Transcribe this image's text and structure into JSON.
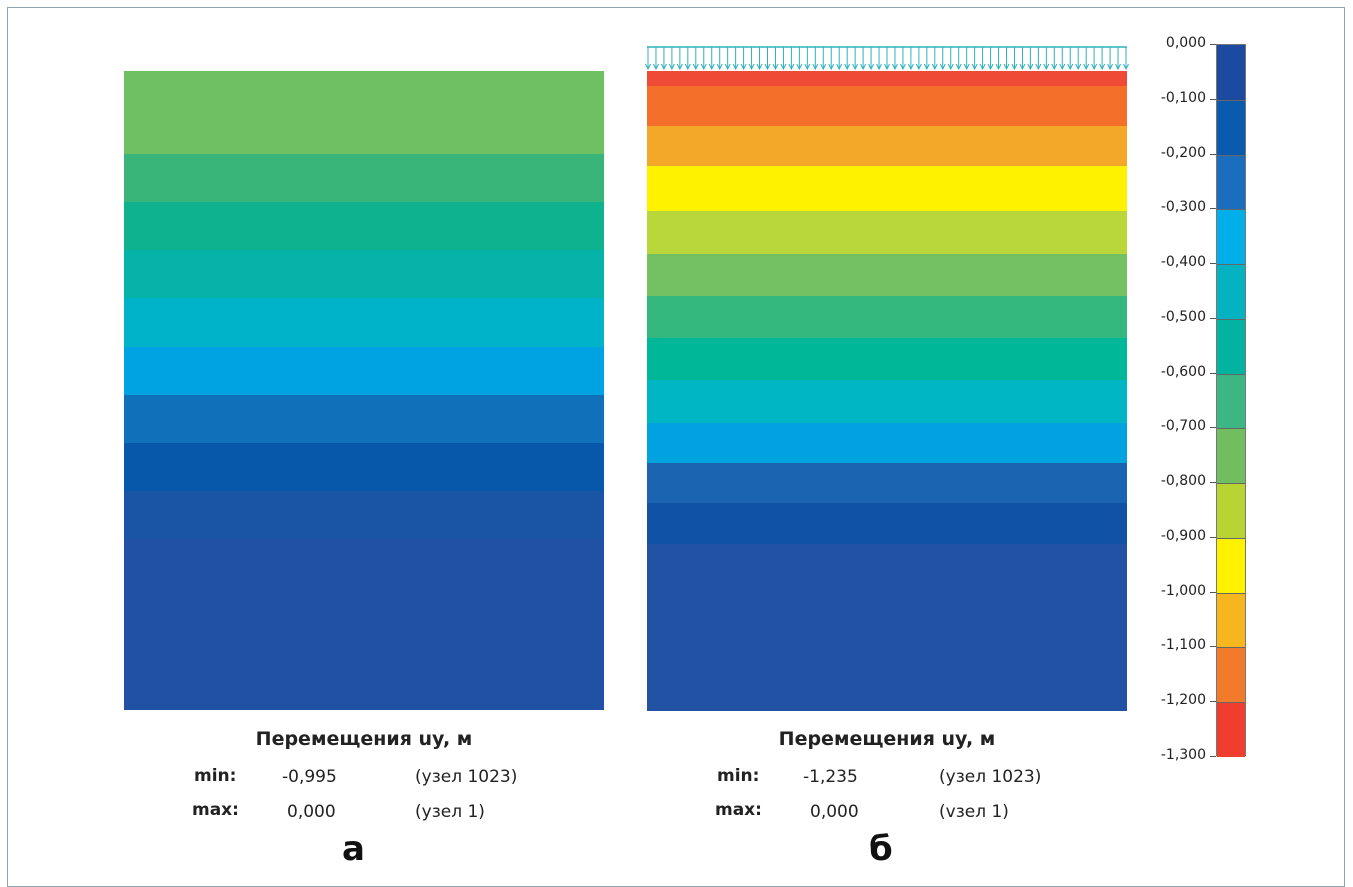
{
  "chart_data": [
    {
      "type": "heatmap",
      "panel_label": "а",
      "title": "Перемещения uy, м",
      "stats": {
        "min": {
          "label": "min:",
          "value": "-0,995",
          "node": "(узел 1023)"
        },
        "max": {
          "label": "max:",
          "value": "0,000",
          "node": "(узел 1)"
        }
      },
      "bands": [
        {
          "color": "#6fbf63"
        },
        {
          "color": "#39b57a"
        },
        {
          "color": "#0fb28e"
        },
        {
          "color": "#06b3a9"
        },
        {
          "color": "#01b3c9"
        },
        {
          "color": "#00a3e2"
        },
        {
          "color": "#1070b9"
        },
        {
          "color": "#0758aa"
        },
        {
          "color": "#1a55a5"
        },
        {
          "color": "#2151a4"
        }
      ]
    },
    {
      "type": "heatmap",
      "panel_label": "б",
      "title": "Перемещения uy, м",
      "stats": {
        "min": {
          "label": "min:",
          "value": "-1,235",
          "node": "(узел 1023)"
        },
        "max": {
          "label": "max:",
          "value": "0,000",
          "node": "(vзел 1)"
        }
      },
      "bands": [
        {
          "color": "#ef4a35"
        },
        {
          "color": "#f36f2a"
        },
        {
          "color": "#f4a828"
        },
        {
          "color": "#fff200"
        },
        {
          "color": "#b9d63a"
        },
        {
          "color": "#74c163"
        },
        {
          "color": "#34b87e"
        },
        {
          "color": "#00b797"
        },
        {
          "color": "#00b6c4"
        },
        {
          "color": "#00a2e0"
        },
        {
          "color": "#1a64b2"
        },
        {
          "color": "#0f52a6"
        },
        {
          "color": "#2252a4"
        }
      ]
    }
  ],
  "legend": {
    "ticks": [
      "0,000",
      "-0,100",
      "-0,200",
      "-0,300",
      "-0,400",
      "-0,500",
      "-0,600",
      "-0,700",
      "-0,800",
      "-0,900",
      "-1,000",
      "-1,100",
      "-1,200",
      "-1,300"
    ],
    "colors": [
      "#1b4aa0",
      "#0a5aaf",
      "#1a6ebd",
      "#00aeea",
      "#03b3c1",
      "#02b49f",
      "#3cb683",
      "#70be5f",
      "#b8d432",
      "#fff200",
      "#f5b71d",
      "#f27b2b",
      "#ef3d2e"
    ]
  }
}
